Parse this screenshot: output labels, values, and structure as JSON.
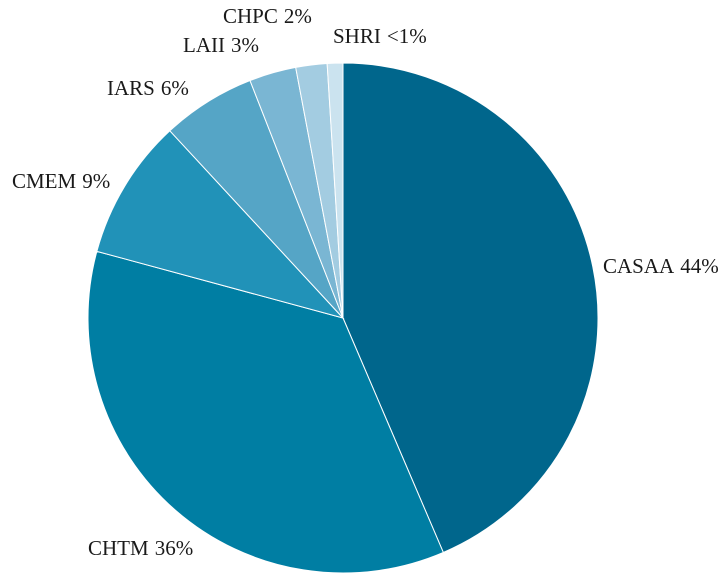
{
  "chart_data": {
    "type": "pie",
    "categories": [
      "CASAA",
      "CHTM",
      "CMEM",
      "IARS",
      "LAII",
      "CHPC",
      "SHRI"
    ],
    "values": [
      44,
      36,
      9,
      6,
      3,
      2,
      1
    ],
    "value_labels": [
      "44%",
      "36%",
      "9%",
      "6%",
      "3%",
      "2%",
      "<1%"
    ],
    "colors": [
      "#00668c",
      "#007ea3",
      "#2192b8",
      "#55a5c6",
      "#7ab6d3",
      "#a3cce1",
      "#cbe3ef"
    ]
  }
}
